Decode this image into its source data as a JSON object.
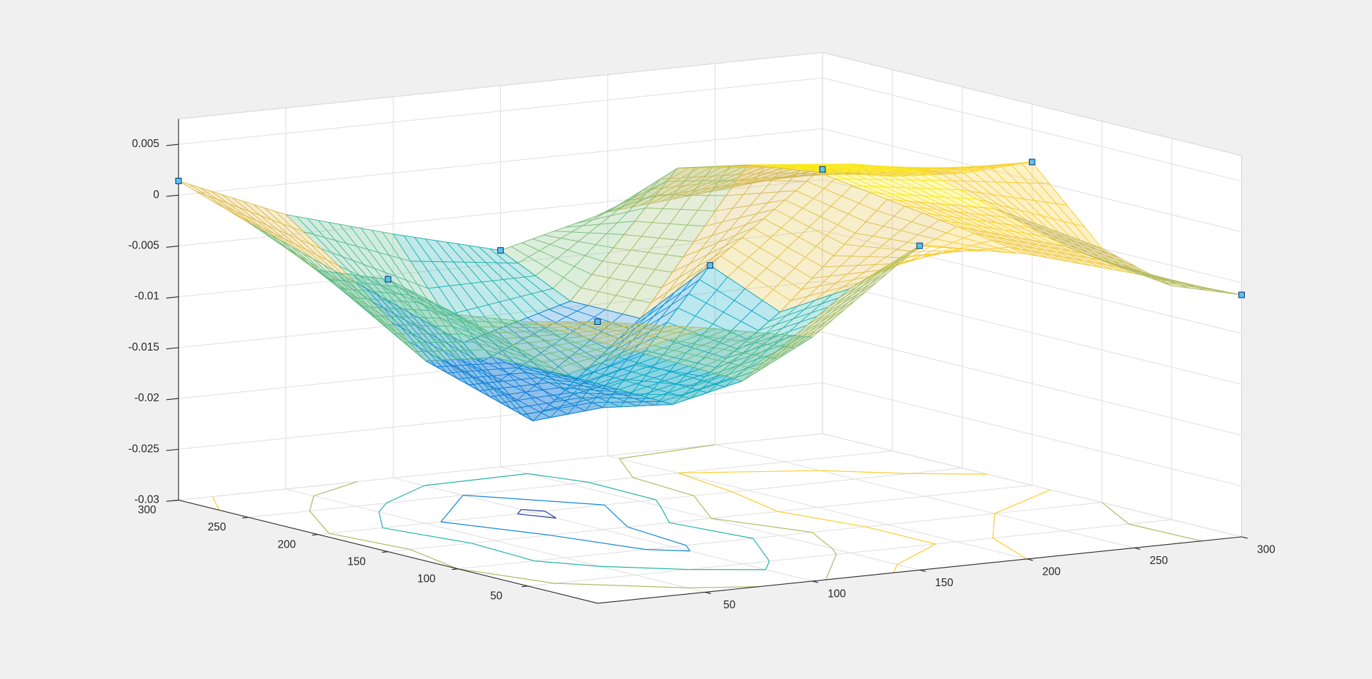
{
  "chart_data": {
    "type": "mesh3d",
    "colormap": "parula",
    "clim": [
      -0.021,
      0.003
    ],
    "xlim": [
      0,
      300
    ],
    "ylim": [
      0,
      300
    ],
    "zlim": [
      -0.03,
      0.0075
    ],
    "xticks": [
      50,
      100,
      150,
      200,
      250,
      300
    ],
    "yticks": [
      50,
      100,
      150,
      200,
      250,
      300
    ],
    "zticks": [
      -0.03,
      -0.025,
      -0.02,
      -0.015,
      -0.01,
      -0.005,
      0,
      0.005
    ],
    "grid": true,
    "surface": {
      "x": [
        0,
        50,
        100,
        150,
        200,
        250,
        300
      ],
      "y": [
        0,
        50,
        100,
        150,
        200,
        250,
        300
      ],
      "z": [
        [
          -0.0023,
          -0.004,
          -0.006,
          0.0019,
          0.0,
          -0.003,
          -0.0062
        ],
        [
          -0.004,
          -0.008,
          -0.012,
          -0.004,
          0.001,
          -0.002,
          -0.007
        ],
        [
          -0.005,
          -0.012,
          -0.016,
          -0.008,
          0.002,
          0.0,
          -0.005
        ],
        [
          -0.0032,
          -0.012,
          -0.018,
          -0.0051,
          0.003,
          0.002,
          0.0018
        ],
        [
          -0.004,
          -0.014,
          -0.021,
          -0.012,
          0.002,
          0.001,
          -0.001
        ],
        [
          -0.001,
          -0.008,
          -0.015,
          -0.012,
          0.0,
          -0.001,
          -0.003
        ],
        [
          0.0014,
          -0.003,
          -0.006,
          -0.0087,
          -0.006,
          -0.005,
          -0.004
        ]
      ]
    },
    "contour_levels": [
      -0.02,
      -0.015,
      -0.01,
      -0.005,
      0
    ],
    "points": {
      "color": "#5cc3ea",
      "edgecolor": "#0b3a82",
      "x": [
        0,
        0,
        0,
        150,
        150,
        150,
        300,
        300,
        300
      ],
      "y": [
        0,
        150,
        300,
        0,
        150,
        300,
        0,
        150,
        300
      ],
      "z": [
        -0.0023,
        -0.0032,
        0.0014,
        0.0019,
        -0.0051,
        -0.0087,
        -0.0062,
        0.0018,
        -0.004
      ]
    }
  }
}
